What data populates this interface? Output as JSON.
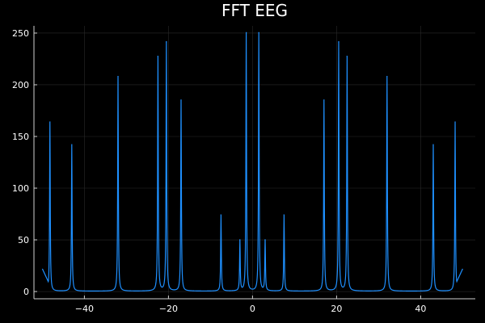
{
  "chart_data": {
    "type": "line",
    "title": "FFT EEG",
    "xlabel": "",
    "ylabel": "",
    "xlim": [
      -52,
      53
    ],
    "ylim": [
      -7,
      257
    ],
    "x_ticks": [
      -40,
      -20,
      0,
      20,
      40
    ],
    "y_ticks": [
      0,
      50,
      100,
      150,
      200,
      250
    ],
    "grid": true,
    "legend": "none",
    "colors": {
      "background": "#000000",
      "line": "#1e90ff",
      "text": "#ffffff"
    },
    "series": [
      {
        "peaks": [
          {
            "x": -48.2,
            "y": 164
          },
          {
            "x": -43.0,
            "y": 142
          },
          {
            "x": -32.0,
            "y": 208
          },
          {
            "x": -22.5,
            "y": 227
          },
          {
            "x": -20.5,
            "y": 241
          },
          {
            "x": -17.0,
            "y": 185
          },
          {
            "x": -7.5,
            "y": 74
          },
          {
            "x": -3.0,
            "y": 49
          },
          {
            "x": -1.5,
            "y": 250
          },
          {
            "x": 1.5,
            "y": 250
          },
          {
            "x": 3.0,
            "y": 49
          },
          {
            "x": 7.5,
            "y": 74
          },
          {
            "x": 17.0,
            "y": 185
          },
          {
            "x": 20.5,
            "y": 241
          },
          {
            "x": 22.5,
            "y": 227
          },
          {
            "x": 32.0,
            "y": 208
          },
          {
            "x": 43.0,
            "y": 142
          },
          {
            "x": 48.2,
            "y": 164
          }
        ],
        "x_range": [
          -50,
          50
        ],
        "edge_y": 22
      }
    ]
  }
}
